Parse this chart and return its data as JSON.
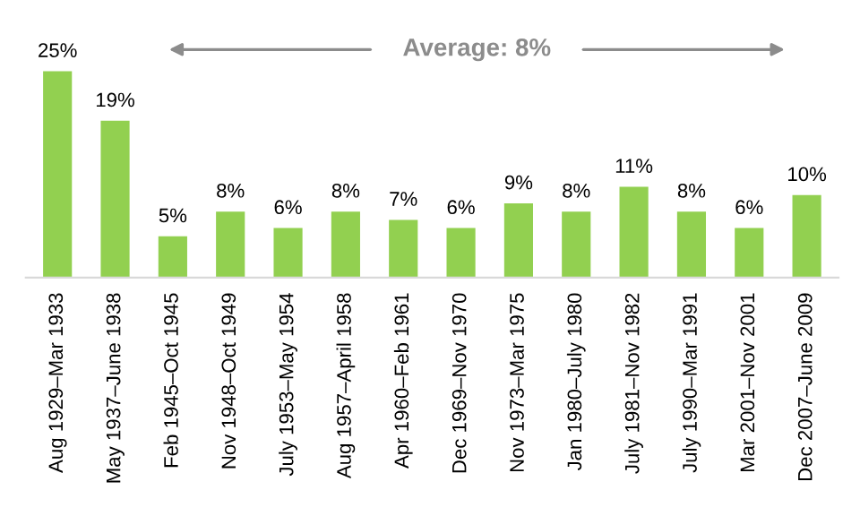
{
  "chart_data": {
    "type": "bar",
    "categories": [
      "Aug 1929–Mar 1933",
      "May 1937–June 1938",
      "Feb 1945–Oct 1945",
      "Nov 1948–Oct 1949",
      "July 1953–May 1954",
      "Aug 1957–April 1958",
      "Apr 1960–Feb 1961",
      "Dec 1969–Nov 1970",
      "Nov 1973–Mar 1975",
      "Jan 1980–July 1980",
      "July 1981–Nov 1982",
      "July 1990–Mar 1991",
      "Mar 2001–Nov 2001",
      "Dec 2007–June 2009"
    ],
    "values": [
      25,
      19,
      5,
      8,
      6,
      8,
      7,
      6,
      9,
      8,
      11,
      8,
      6,
      10
    ],
    "value_labels": [
      "25%",
      "19%",
      "5%",
      "8%",
      "6%",
      "8%",
      "7%",
      "6%",
      "9%",
      "8%",
      "11%",
      "8%",
      "6%",
      "10%"
    ],
    "color": "#92d050",
    "grid": false,
    "legend": false,
    "annotations": [
      "Average: 8%"
    ]
  }
}
